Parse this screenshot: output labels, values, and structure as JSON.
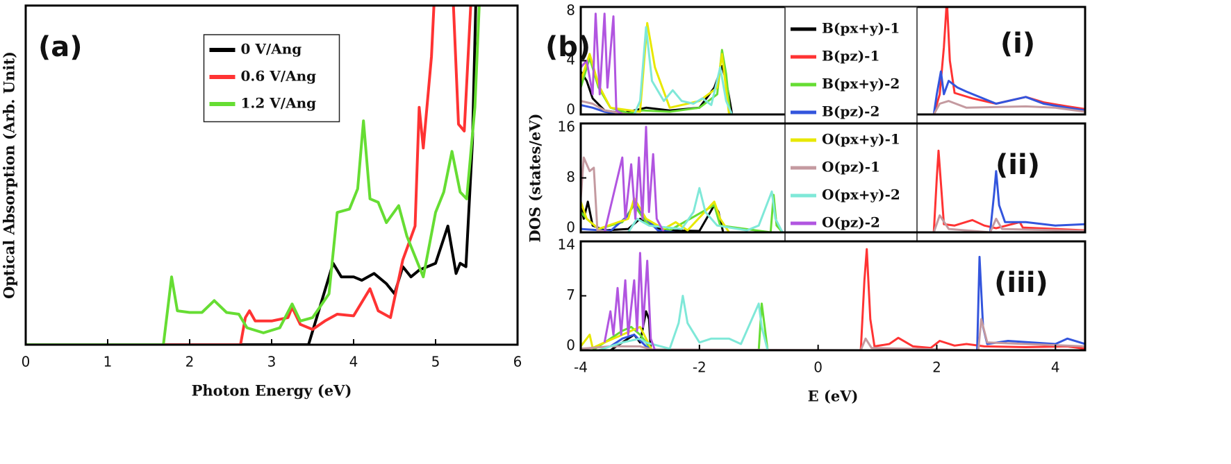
{
  "chart_data": [
    {
      "type": "line",
      "panel_label": "(a)",
      "x_label": "Photon Energy (eV)",
      "y_label": "Optical Absorption (Arb. Unit)",
      "xlim": [
        0,
        6
      ],
      "xticks": [
        0,
        1,
        2,
        3,
        4,
        5,
        6
      ],
      "ylim": [
        0,
        10
      ],
      "legend": "upper center",
      "series": [
        {
          "name": "0 V/Ang",
          "color": "#000000",
          "x": [
            0,
            3.45,
            3.6,
            3.75,
            3.85,
            4.0,
            4.1,
            4.25,
            4.4,
            4.5,
            4.6,
            4.7,
            4.8,
            5.0,
            5.15,
            5.25,
            5.3,
            5.37,
            5.45,
            5.5
          ],
          "values": [
            0,
            0,
            1.2,
            2.4,
            2.0,
            2.0,
            1.9,
            2.1,
            1.8,
            1.5,
            2.3,
            2.0,
            2.2,
            2.4,
            3.5,
            2.1,
            2.4,
            2.3,
            6.0,
            11
          ]
        },
        {
          "name": "0.6 V/Ang",
          "color": "#ff3333",
          "x": [
            0,
            2.62,
            2.68,
            2.73,
            2.8,
            3.0,
            3.2,
            3.25,
            3.35,
            3.5,
            3.65,
            3.8,
            4.0,
            4.2,
            4.3,
            4.45,
            4.6,
            4.75,
            4.8,
            4.85,
            4.95,
            5.0,
            5.2,
            5.28,
            5.35,
            5.45
          ],
          "values": [
            0,
            0,
            0.8,
            1.0,
            0.7,
            0.7,
            0.8,
            1.1,
            0.6,
            0.45,
            0.7,
            0.9,
            0.85,
            1.65,
            1.0,
            0.8,
            2.5,
            3.5,
            7.0,
            5.8,
            8.5,
            11,
            11,
            6.5,
            6.3,
            11
          ]
        },
        {
          "name": "1.2 V/Ang",
          "color": "#66dd33",
          "x": [
            0,
            1.68,
            1.74,
            1.78,
            1.85,
            2.0,
            2.15,
            2.3,
            2.45,
            2.6,
            2.7,
            2.9,
            3.1,
            3.25,
            3.35,
            3.5,
            3.7,
            3.8,
            3.95,
            4.05,
            4.12,
            4.2,
            4.3,
            4.4,
            4.55,
            4.65,
            4.85,
            5.0,
            5.1,
            5.2,
            5.3,
            5.38,
            5.48,
            5.55
          ],
          "values": [
            0,
            0,
            1.2,
            2.0,
            1.0,
            0.95,
            0.95,
            1.3,
            0.95,
            0.9,
            0.5,
            0.35,
            0.5,
            1.2,
            0.7,
            0.8,
            1.5,
            3.9,
            4.0,
            4.6,
            6.6,
            4.3,
            4.2,
            3.6,
            4.1,
            3.2,
            2.0,
            3.9,
            4.5,
            5.7,
            4.5,
            4.3,
            7,
            11
          ]
        }
      ]
    },
    {
      "type": "line",
      "panel_label": "(b)",
      "annotation": "(i)",
      "xlim": [
        -4,
        4.5
      ],
      "ylim": [
        0,
        8
      ],
      "yticks": [
        0,
        4,
        8
      ],
      "legend": "upper center",
      "series": [
        {
          "name": "B(px+y)-1",
          "color": "#000000",
          "x": [
            -4,
            -3.9,
            -3.8,
            -3.6,
            -3.3,
            -2.9,
            -2.5,
            -2.0,
            -1.75,
            -1.62,
            -1.55,
            -1.48,
            -1.45
          ],
          "values": [
            3.2,
            2.5,
            1.2,
            0.3,
            0.1,
            0.5,
            0.3,
            0.5,
            2.0,
            3.6,
            2.5,
            0.8,
            0
          ]
        },
        {
          "name": "B(pz)-1",
          "color": "#ff3333",
          "x": [
            -4,
            1.95,
            2.05,
            2.12,
            2.17,
            2.22,
            2.3,
            2.6,
            3.0,
            3.5,
            3.8,
            4.2,
            4.5
          ],
          "values": [
            0,
            0,
            1.5,
            5,
            8.5,
            4,
            1.6,
            1.2,
            0.8,
            1.3,
            0.9,
            0.6,
            0.4
          ]
        },
        {
          "name": "B(px+y)-2",
          "color": "#66dd33",
          "x": [
            -4,
            -3.85,
            -3.7,
            -3.5,
            -3.2,
            -2.95,
            -2.5,
            -2.0,
            -1.7,
            -1.62,
            -1.55,
            -1.48
          ],
          "values": [
            2,
            4.2,
            2,
            0.5,
            0.1,
            0.3,
            0.2,
            0.5,
            1.5,
            4.8,
            3,
            0
          ]
        },
        {
          "name": "B(pz)-2",
          "color": "#3355dd",
          "x": [
            -4,
            -3.8,
            -3.6,
            -3.3,
            1.95,
            2.0,
            2.07,
            2.12,
            2.2,
            2.35,
            2.5,
            3.0,
            3.5,
            3.8,
            4.2,
            4.5
          ],
          "values": [
            0.7,
            0.5,
            0.2,
            0,
            0,
            1.5,
            3.2,
            1.5,
            2.5,
            2,
            1.7,
            0.8,
            1.3,
            0.8,
            0.5,
            0.3
          ]
        },
        {
          "name": "O(px+y)-1",
          "color": "#e8e800",
          "x": [
            -4,
            -3.85,
            -3.7,
            -3.5,
            -3.0,
            -2.88,
            -2.75,
            -2.5,
            -2.0,
            -1.7,
            -1.62,
            -1.5
          ],
          "values": [
            2.5,
            4.5,
            2.2,
            0.5,
            0.2,
            6.8,
            3.5,
            0.5,
            1.0,
            2.0,
            4.5,
            0
          ]
        },
        {
          "name": "O(pz)-1",
          "color": "#c49aa0",
          "x": [
            -4,
            -3.8,
            -3.6,
            -3.2,
            1.95,
            2.05,
            2.2,
            2.5,
            3.5,
            4,
            4.5
          ],
          "values": [
            1,
            0.8,
            0.3,
            0,
            0,
            0.8,
            1.0,
            0.5,
            0.6,
            0.5,
            0.2
          ]
        },
        {
          "name": "O(px+y)-2",
          "color": "#7fe8d8",
          "x": [
            -3.1,
            -3.0,
            -2.9,
            -2.8,
            -2.6,
            -2.45,
            -2.3,
            -2.1,
            -1.95,
            -1.8,
            -1.65,
            -1.55,
            -1.45
          ],
          "values": [
            0,
            1.0,
            6.5,
            2.5,
            1.0,
            1.8,
            1.0,
            0.8,
            1.2,
            0.7,
            3.5,
            1.0,
            0
          ]
        },
        {
          "name": "O(pz)-2",
          "color": "#b155e0",
          "x": [
            -4,
            -3.9,
            -3.8,
            -3.75,
            -3.68,
            -3.6,
            -3.55,
            -3.45,
            -3.4,
            -3.3
          ],
          "values": [
            3.5,
            4,
            1.5,
            7.5,
            1.5,
            7.5,
            2.0,
            7.3,
            0.3,
            0
          ]
        }
      ]
    },
    {
      "type": "line",
      "annotation": "(ii)",
      "y_label": "DOS (states/eV)",
      "xlim": [
        -4,
        4.5
      ],
      "ylim": [
        0,
        16
      ],
      "yticks": [
        0,
        8,
        16
      ],
      "series": [
        {
          "color": "#000000",
          "x": [
            -4,
            -3.95,
            -3.88,
            -3.8,
            -3.6,
            -3.2,
            -3.0,
            -2.8,
            -2.6,
            -2.0,
            -1.75,
            -1.68,
            -1.6
          ],
          "values": [
            4,
            2,
            4.5,
            1,
            0.3,
            0.5,
            2,
            1,
            0.3,
            0.2,
            4,
            3,
            0
          ]
        },
        {
          "color": "#ff3333",
          "x": [
            -4,
            1.95,
            2.0,
            2.03,
            2.08,
            2.12,
            2.3,
            2.6,
            2.8,
            3.0,
            3.4,
            3.45,
            4.0,
            4.5
          ],
          "values": [
            0,
            0,
            8,
            12,
            6,
            1.2,
            1,
            1.8,
            1.0,
            0.6,
            1.5,
            0.7,
            0.5,
            0.3
          ]
        },
        {
          "color": "#66dd33",
          "x": [
            -4,
            -3.9,
            -3.7,
            -3.3,
            -3.1,
            -2.9,
            -2.5,
            -1.75,
            -1.65,
            -0.8,
            -0.75,
            -0.7,
            -0.6
          ],
          "values": [
            3,
            2,
            0.5,
            1.5,
            4,
            1.5,
            0.3,
            4,
            1,
            0,
            5.5,
            1,
            0
          ]
        },
        {
          "color": "#3355dd",
          "x": [
            -4,
            -3.5,
            -3.2,
            -3.1,
            -2.9,
            -2.7,
            -2.4,
            2.9,
            2.97,
            3.0,
            3.05,
            3.15,
            3.5,
            4.0,
            4.5
          ],
          "values": [
            0.5,
            0.2,
            2.5,
            4.5,
            2,
            0.3,
            0,
            0,
            6,
            9,
            4,
            1.5,
            1.5,
            1.0,
            1.2
          ]
        },
        {
          "color": "#e8e800",
          "x": [
            -4,
            -3.9,
            -3.7,
            -3.2,
            -3.1,
            -2.9,
            -2.6,
            -2.4,
            -2.2,
            -1.75,
            -1.65,
            -1.5
          ],
          "values": [
            4.5,
            2.0,
            0.5,
            2,
            5,
            2,
            0.5,
            1.5,
            0.3,
            4.5,
            2,
            0
          ]
        },
        {
          "color": "#c49aa0",
          "x": [
            -4,
            -3.95,
            -3.85,
            -3.78,
            -3.72,
            -3.5,
            1.95,
            2.05,
            2.2,
            2.9,
            3.0,
            3.1,
            4.5
          ],
          "values": [
            5,
            11,
            9,
            9.5,
            0.3,
            0,
            0,
            2.5,
            0.5,
            0,
            2,
            0.5,
            0.2
          ]
        },
        {
          "color": "#7fe8d8",
          "x": [
            -3.2,
            -3.05,
            -2.85,
            -2.3,
            -2.1,
            -2.0,
            -1.9,
            -1.7,
            -1.2,
            -1.0,
            -0.78,
            -0.72,
            -0.6
          ],
          "values": [
            0,
            2,
            1,
            0.5,
            3,
            6.5,
            3.0,
            1.0,
            0.3,
            1,
            6,
            2,
            0
          ]
        },
        {
          "color": "#b155e0",
          "x": [
            -3.6,
            -3.3,
            -3.25,
            -3.15,
            -3.08,
            -3.02,
            -2.96,
            -2.9,
            -2.85,
            -2.78,
            -2.72,
            -2.6
          ],
          "values": [
            0,
            11,
            2,
            10,
            2,
            11,
            2,
            15.5,
            3,
            11.5,
            2,
            0
          ]
        }
      ]
    },
    {
      "type": "line",
      "annotation": "(iii)",
      "x_label": "E (eV)",
      "xlim": [
        -4,
        4.5
      ],
      "xticks": [
        -4,
        -2,
        0,
        2,
        4
      ],
      "ylim": [
        0,
        14
      ],
      "yticks": [
        0,
        7,
        14
      ],
      "series": [
        {
          "color": "#000000",
          "x": [
            -3.5,
            -3.3,
            -3.1,
            -3.0,
            -2.9,
            -2.85,
            -2.82
          ],
          "values": [
            0,
            1,
            2,
            1,
            5,
            4,
            0
          ]
        },
        {
          "color": "#ff3333",
          "x": [
            -4,
            0.72,
            0.78,
            0.82,
            0.88,
            0.95,
            1.2,
            1.35,
            1.6,
            1.9,
            2.05,
            2.3,
            2.5,
            2.8,
            3.5,
            4.2,
            4.5
          ],
          "values": [
            0,
            0,
            9,
            13,
            4,
            0.5,
            0.8,
            1.6,
            0.5,
            0.3,
            1.2,
            0.6,
            0.8,
            0.5,
            0.4,
            0.5,
            0.2
          ]
        },
        {
          "color": "#66dd33",
          "x": [
            -3.8,
            -3.5,
            -3.3,
            -3.15,
            -3.0,
            -2.9,
            -2.8,
            -1.0,
            -0.95,
            -0.9,
            -0.85
          ],
          "values": [
            0,
            1.5,
            2.5,
            3,
            2,
            1,
            0,
            0,
            6,
            3,
            0
          ]
        },
        {
          "color": "#3355dd",
          "x": [
            -3.5,
            -3.3,
            -3.1,
            -2.9,
            -2.8,
            2.68,
            2.72,
            2.78,
            2.85,
            3.2,
            3.6,
            4.0,
            4.2,
            4.5
          ],
          "values": [
            0.5,
            1.5,
            2,
            0.5,
            0,
            0,
            12,
            3,
            0.8,
            1.2,
            1.0,
            0.8,
            1.5,
            0.8
          ]
        },
        {
          "color": "#e8e800",
          "x": [
            -4,
            -3.85,
            -3.8,
            -3.6,
            -3.3,
            -3.0,
            -2.9,
            -2.8
          ],
          "values": [
            0.5,
            2,
            0.3,
            1,
            2,
            3,
            1.5,
            0
          ]
        },
        {
          "color": "#c49aa0",
          "x": [
            -4,
            -3.5,
            -3.0,
            -2.8,
            0.72,
            0.8,
            0.9,
            2.7,
            2.75,
            2.85,
            4.5
          ],
          "values": [
            0.2,
            0.5,
            0.5,
            0.1,
            0,
            1.5,
            0.3,
            0,
            4,
            1.0,
            0.5
          ]
        },
        {
          "color": "#7fe8d8",
          "x": [
            -3.7,
            -3.3,
            -3.0,
            -2.9,
            -2.5,
            -2.35,
            -2.28,
            -2.2,
            -2.0,
            -1.8,
            -1.5,
            -1.3,
            -1.0,
            -0.95,
            -0.85
          ],
          "values": [
            0,
            1,
            1.5,
            1,
            0.2,
            3.5,
            7,
            3.5,
            1.0,
            1.5,
            1.5,
            0.8,
            6,
            3,
            0
          ]
        },
        {
          "color": "#b155e0",
          "x": [
            -3.6,
            -3.5,
            -3.45,
            -3.38,
            -3.32,
            -3.25,
            -3.2,
            -3.1,
            -3.05,
            -3.0,
            -2.95,
            -2.88,
            -2.82,
            -2.75
          ],
          "values": [
            1,
            5,
            2,
            8,
            2,
            9,
            2,
            9,
            2.5,
            12.5,
            3,
            11.5,
            1.5,
            0
          ]
        }
      ]
    }
  ]
}
